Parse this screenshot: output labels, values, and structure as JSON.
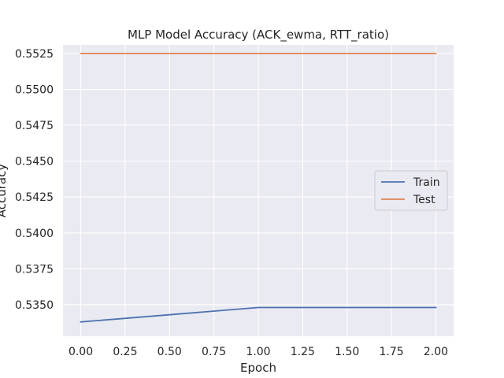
{
  "chart_data": {
    "type": "line",
    "title": "MLP Model Accuracy (ACK_ewma, RTT_ratio)",
    "xlabel": "Epoch",
    "ylabel": "Accuracy",
    "xlim": [
      -0.1,
      2.1
    ],
    "ylim": [
      0.5328,
      0.5531
    ],
    "xticks": [
      0.0,
      0.25,
      0.5,
      0.75,
      1.0,
      1.25,
      1.5,
      1.75,
      2.0
    ],
    "xtick_labels": [
      "0.00",
      "0.25",
      "0.50",
      "0.75",
      "1.00",
      "1.25",
      "1.50",
      "1.75",
      "2.00"
    ],
    "yticks": [
      0.535,
      0.5375,
      0.54,
      0.5425,
      0.545,
      0.5475,
      0.55,
      0.5525
    ],
    "ytick_labels": [
      "0.5350",
      "0.5375",
      "0.5400",
      "0.5425",
      "0.5450",
      "0.5475",
      "0.5500",
      "0.5525"
    ],
    "grid": true,
    "legend_position": "center-right",
    "x": [
      0,
      1,
      2
    ],
    "series": [
      {
        "name": "Train",
        "color": "#4c72b0",
        "values": [
          0.5338,
          0.5348,
          0.5348
        ]
      },
      {
        "name": "Test",
        "color": "#dd8452",
        "values": [
          0.5525,
          0.5525,
          0.5525
        ]
      }
    ]
  }
}
